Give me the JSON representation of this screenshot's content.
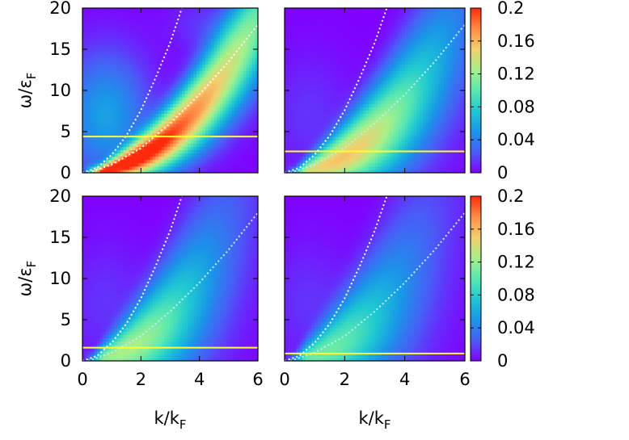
{
  "chart_data": [
    {
      "type": "heatmap",
      "panel": "top-left",
      "xlabel": "",
      "ylabel": "ω/ε_F",
      "xlim": [
        0,
        6
      ],
      "ylim": [
        0,
        20
      ],
      "xticks": [],
      "yticks": [
        "0",
        "5",
        "10",
        "15",
        "20"
      ],
      "yellow_line_y": 4.4,
      "peak": {
        "ref_x": 2.0,
        "ref_y": 3.0,
        "curv": 0.5,
        "width": 0.55,
        "amp": 0.2,
        "decay": 0.04,
        "min_width_x": 0.35
      },
      "dotted_curves": [
        {
          "color": "#ffffff",
          "points": [
            [
              0.0,
              0.0
            ],
            [
              0.5,
              0.6
            ],
            [
              1.0,
              2.2
            ],
            [
              1.5,
              4.5
            ],
            [
              2.0,
              7.6
            ],
            [
              2.5,
              11.5
            ],
            [
              3.0,
              15.8
            ],
            [
              3.4,
              20.0
            ]
          ]
        },
        {
          "color": "#ffffff",
          "points": [
            [
              0.2,
              0.0
            ],
            [
              1.0,
              1.0
            ],
            [
              2.0,
              3.0
            ],
            [
              3.0,
              6.0
            ],
            [
              4.0,
              9.5
            ],
            [
              5.0,
              13.5
            ],
            [
              6.0,
              18.0
            ]
          ]
        }
      ]
    },
    {
      "type": "heatmap",
      "panel": "top-right",
      "xlabel": "",
      "ylabel": "",
      "xlim": [
        0,
        6
      ],
      "ylim": [
        0,
        20
      ],
      "xticks": [],
      "yticks": [],
      "yellow_line_y": 2.6,
      "peak": {
        "ref_x": 2.0,
        "ref_y": 3.0,
        "curv": 0.5,
        "width": 0.85,
        "amp": 0.15,
        "decay": 0.09,
        "min_width_x": 0.3
      },
      "dotted_curves": [
        {
          "color": "#ffffff",
          "points": [
            [
              0.0,
              0.0
            ],
            [
              0.5,
              0.6
            ],
            [
              1.0,
              2.2
            ],
            [
              1.5,
              4.5
            ],
            [
              2.0,
              7.6
            ],
            [
              2.5,
              11.5
            ],
            [
              3.0,
              15.8
            ],
            [
              3.4,
              20.0
            ]
          ]
        },
        {
          "color": "#bfefff",
          "points": [
            [
              0.2,
              0.0
            ],
            [
              1.0,
              1.0
            ],
            [
              2.0,
              3.0
            ],
            [
              3.0,
              6.0
            ],
            [
              4.0,
              9.5
            ],
            [
              5.0,
              13.5
            ],
            [
              6.0,
              18.0
            ]
          ]
        }
      ],
      "colorbar": {
        "min": 0,
        "max": 0.2,
        "ticks": [
          "0",
          "0.04",
          "0.08",
          "0.12",
          "0.16",
          "0.2"
        ]
      }
    },
    {
      "type": "heatmap",
      "panel": "bottom-left",
      "xlabel": "k/k_F",
      "ylabel": "ω/ε_F",
      "xlim": [
        0,
        6
      ],
      "ylim": [
        0,
        20
      ],
      "xticks": [
        "0",
        "2",
        "4",
        "6"
      ],
      "yticks": [
        "0",
        "5",
        "10",
        "15",
        "20"
      ],
      "yellow_line_y": 1.6,
      "peak": {
        "ref_x": 1.6,
        "ref_y": 2.0,
        "curv": 0.55,
        "width": 1.1,
        "amp": 0.12,
        "decay": 0.11,
        "min_width_x": 0.3
      },
      "dotted_curves": [
        {
          "color": "#ffffff",
          "points": [
            [
              0.0,
              0.0
            ],
            [
              0.5,
              0.6
            ],
            [
              1.0,
              2.2
            ],
            [
              1.5,
              4.5
            ],
            [
              2.0,
              7.6
            ],
            [
              2.5,
              11.5
            ],
            [
              3.0,
              15.8
            ],
            [
              3.4,
              20.0
            ]
          ]
        },
        {
          "color": "#bfefff",
          "points": [
            [
              0.2,
              0.0
            ],
            [
              1.0,
              1.0
            ],
            [
              2.0,
              3.0
            ],
            [
              3.0,
              6.0
            ],
            [
              4.0,
              9.5
            ],
            [
              5.0,
              13.5
            ],
            [
              6.0,
              18.0
            ]
          ]
        }
      ]
    },
    {
      "type": "heatmap",
      "panel": "bottom-right",
      "xlabel": "k/k_F",
      "ylabel": "",
      "xlim": [
        0,
        6
      ],
      "ylim": [
        0,
        20
      ],
      "xticks": [
        "0",
        "2",
        "4",
        "6"
      ],
      "yticks": [],
      "yellow_line_y": 0.9,
      "peak": {
        "ref_x": 1.4,
        "ref_y": 1.4,
        "curv": 0.55,
        "width": 1.2,
        "amp": 0.1,
        "decay": 0.11,
        "min_width_x": 0.3
      },
      "dotted_curves": [
        {
          "color": "#ffffff",
          "points": [
            [
              0.0,
              0.0
            ],
            [
              0.5,
              0.6
            ],
            [
              1.0,
              2.2
            ],
            [
              1.5,
              4.5
            ],
            [
              2.0,
              7.6
            ],
            [
              2.5,
              11.5
            ],
            [
              3.0,
              15.8
            ],
            [
              3.4,
              20.0
            ]
          ]
        },
        {
          "color": "#bfefff",
          "points": [
            [
              0.2,
              0.0
            ],
            [
              1.0,
              1.0
            ],
            [
              2.0,
              3.0
            ],
            [
              3.0,
              6.0
            ],
            [
              4.0,
              9.5
            ],
            [
              5.0,
              13.5
            ],
            [
              6.0,
              18.0
            ]
          ]
        }
      ],
      "colorbar": {
        "min": 0,
        "max": 0.2,
        "ticks": [
          "0",
          "0.04",
          "0.08",
          "0.12",
          "0.16",
          "0.2"
        ]
      }
    }
  ],
  "colors": {
    "yellow_line": "#ffff33",
    "colormap": [
      "#8000ff",
      "#4a5cf7",
      "#1996e8",
      "#1ec8d2",
      "#5ae8b0",
      "#a8f08a",
      "#f2d06e",
      "#ff8c46",
      "#ff2a0c"
    ]
  }
}
